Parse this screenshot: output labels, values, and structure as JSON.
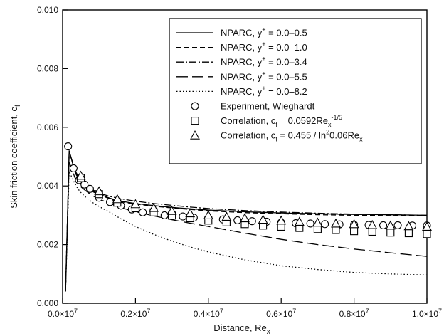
{
  "chart_data": {
    "type": "line",
    "xlabel": "Distance, Re",
    "xlabel_sub": "x",
    "ylabel": "Skin friction coefficient, c",
    "ylabel_sub": "f",
    "xlim": [
      0,
      10000000
    ],
    "ylim": [
      0,
      0.01
    ],
    "xticks": [
      {
        "value": 0,
        "label": "0.0×10",
        "exp": "7"
      },
      {
        "value": 2000000,
        "label": "0.2×10",
        "exp": "7"
      },
      {
        "value": 4000000,
        "label": "0.4×10",
        "exp": "7"
      },
      {
        "value": 6000000,
        "label": "0.6×10",
        "exp": "7"
      },
      {
        "value": 8000000,
        "label": "0.8×10",
        "exp": "7"
      },
      {
        "value": 10000000,
        "label": "1.0×10",
        "exp": "7"
      }
    ],
    "yticks": [
      {
        "value": 0,
        "label": "0.000"
      },
      {
        "value": 0.002,
        "label": "0.002"
      },
      {
        "value": 0.004,
        "label": "0.004"
      },
      {
        "value": 0.006,
        "label": "0.006"
      },
      {
        "value": 0.008,
        "label": "0.008"
      },
      {
        "value": 0.01,
        "label": "0.010"
      }
    ],
    "grid": false,
    "legend_position": "top-right",
    "series": [
      {
        "name": "NPARC, y+ = 0.0–0.5",
        "legend": {
          "pre": "NPARC, y",
          "sup": "+",
          "post": " = 0.0–0.5"
        },
        "style": "solid",
        "dash": "",
        "x": [
          80000,
          130000,
          180000,
          250000,
          330000,
          420000,
          520000,
          650000,
          800000,
          1000000,
          1300000,
          1600000,
          2000000,
          2500000,
          3000000,
          3500000,
          4000000,
          5000000,
          6000000,
          7000000,
          8000000,
          9000000,
          10000000
        ],
        "y": [
          0.0004,
          0.0028,
          0.0052,
          0.0049,
          0.0045,
          0.0043,
          0.0041,
          0.00398,
          0.00385,
          0.00372,
          0.00358,
          0.00348,
          0.0034,
          0.00333,
          0.00327,
          0.00322,
          0.00318,
          0.00312,
          0.00308,
          0.00305,
          0.00303,
          0.00302,
          0.003
        ]
      },
      {
        "name": "NPARC, y+ = 0.0–1.0",
        "legend": {
          "pre": "NPARC, y",
          "sup": "+",
          "post": " = 0.0–1.0"
        },
        "style": "dash",
        "dash": "7,4",
        "x": [
          80000,
          130000,
          180000,
          250000,
          330000,
          420000,
          520000,
          650000,
          800000,
          1000000,
          1300000,
          1600000,
          2000000,
          2500000,
          3000000,
          3500000,
          4000000,
          5000000,
          6000000,
          7000000,
          8000000,
          9000000,
          10000000
        ],
        "y": [
          0.0004,
          0.0028,
          0.0052,
          0.00488,
          0.00448,
          0.00428,
          0.00408,
          0.00395,
          0.00382,
          0.0037,
          0.00356,
          0.00346,
          0.00338,
          0.00331,
          0.00325,
          0.0032,
          0.00315,
          0.00309,
          0.00305,
          0.00302,
          0.003,
          0.00299,
          0.00298
        ]
      },
      {
        "name": "NPARC, y+ = 0.0–3.4",
        "legend": {
          "pre": "NPARC, y",
          "sup": "+",
          "post": " = 0.0–3.4"
        },
        "style": "dashdot",
        "dash": "10,3,2,3",
        "x": [
          80000,
          130000,
          180000,
          250000,
          330000,
          420000,
          520000,
          650000,
          800000,
          1000000,
          1300000,
          1600000,
          2000000,
          2500000,
          3000000,
          3500000,
          4000000,
          5000000,
          6000000,
          7000000,
          8000000,
          9000000,
          10000000
        ],
        "y": [
          0.0004,
          0.0028,
          0.0051,
          0.0049,
          0.00455,
          0.00435,
          0.00415,
          0.004,
          0.00388,
          0.00376,
          0.00364,
          0.00356,
          0.00348,
          0.0034,
          0.00334,
          0.00328,
          0.00323,
          0.00316,
          0.00311,
          0.00307,
          0.00304,
          0.00302,
          0.003
        ]
      },
      {
        "name": "NPARC, y+ = 0.0–5.5",
        "legend": {
          "pre": "NPARC, y",
          "sup": "+",
          "post": " = 0.0–5.5"
        },
        "style": "longdash",
        "dash": "16,6",
        "x": [
          80000,
          130000,
          180000,
          250000,
          330000,
          420000,
          520000,
          650000,
          800000,
          1000000,
          1300000,
          1600000,
          2000000,
          2500000,
          3000000,
          3500000,
          4000000,
          5000000,
          6000000,
          7000000,
          8000000,
          9000000,
          10000000
        ],
        "y": [
          0.0004,
          0.0026,
          0.0048,
          0.0046,
          0.0043,
          0.0041,
          0.00395,
          0.00382,
          0.00368,
          0.00355,
          0.0034,
          0.00326,
          0.00312,
          0.00298,
          0.00285,
          0.00273,
          0.00262,
          0.00239,
          0.00218,
          0.002,
          0.00185,
          0.00172,
          0.0016
        ]
      },
      {
        "name": "NPARC, y+ = 0.0–8.2",
        "legend": {
          "pre": "NPARC, y",
          "sup": "+",
          "post": " = 0.0–8.2"
        },
        "style": "dotted",
        "dash": "1.5,3",
        "x": [
          80000,
          130000,
          180000,
          250000,
          330000,
          420000,
          520000,
          650000,
          800000,
          1000000,
          1300000,
          1600000,
          2000000,
          2500000,
          3000000,
          3500000,
          4000000,
          5000000,
          6000000,
          7000000,
          8000000,
          9000000,
          10000000
        ],
        "y": [
          0.0004,
          0.0024,
          0.0045,
          0.0043,
          0.0041,
          0.0039,
          0.00375,
          0.0036,
          0.00345,
          0.0033,
          0.0031,
          0.00288,
          0.00262,
          0.00235,
          0.00212,
          0.00192,
          0.00175,
          0.00148,
          0.00128,
          0.00115,
          0.00105,
          0.001,
          0.00096
        ]
      }
    ],
    "markers": [
      {
        "name": "Experiment, Wieghardt",
        "legend": {
          "pre": "Experiment, Wieghardt"
        },
        "marker": "circle",
        "x": [
          150000,
          300000,
          450000,
          600000,
          750000,
          1000000,
          1300000,
          1600000,
          1900000,
          2200000,
          2500000,
          2800000,
          3000000,
          3300000,
          3600000,
          4000000,
          4400000,
          4800000,
          5200000,
          5600000,
          6000000,
          6400000,
          6800000,
          7200000,
          7600000,
          8000000,
          8400000,
          8800000,
          9200000,
          9600000,
          10000000
        ],
        "y": [
          0.00535,
          0.0046,
          0.0042,
          0.00405,
          0.0039,
          0.0036,
          0.00345,
          0.00333,
          0.0032,
          0.0031,
          0.0031,
          0.003,
          0.00298,
          0.00296,
          0.00292,
          0.0029,
          0.00286,
          0.00283,
          0.0028,
          0.00278,
          0.00275,
          0.00273,
          0.00272,
          0.0027,
          0.00269,
          0.00268,
          0.00267,
          0.00266,
          0.00266,
          0.00265,
          0.00265
        ]
      },
      {
        "name": "Correlation, cf = 0.0592Rex^-1/5",
        "legend": {
          "pre": "Correlation, c",
          "sub1": "f",
          "mid": " = 0.0592Re",
          "sub2": "x",
          "sup": "-1/5"
        },
        "marker": "square",
        "x": [
          500000,
          1000000,
          1500000,
          2000000,
          2500000,
          3000000,
          3500000,
          4000000,
          4500000,
          5000000,
          5500000,
          6000000,
          6500000,
          7000000,
          7500000,
          8000000,
          8500000,
          9000000,
          9500000,
          10000000
        ],
        "y": [
          0.00427,
          0.00372,
          0.00343,
          0.00324,
          0.0031,
          0.00299,
          0.0029,
          0.00282,
          0.00276,
          0.0027,
          0.00265,
          0.00261,
          0.00257,
          0.00253,
          0.0025,
          0.00246,
          0.00244,
          0.00241,
          0.00239,
          0.00236
        ]
      },
      {
        "name": "Correlation, cf = 0.455 / ln²0.06Rex",
        "legend": {
          "pre": "Correlation, c",
          "sub1": "f",
          "mid": " = 0.455 / ln",
          "sup": "2",
          "post": "0.06Re",
          "sub2": "x"
        },
        "marker": "triangle",
        "x": [
          500000,
          1000000,
          1500000,
          2000000,
          2500000,
          3000000,
          3500000,
          4000000,
          4500000,
          5000000,
          5500000,
          6000000,
          6500000,
          7000000,
          7500000,
          8000000,
          8500000,
          9000000,
          9500000,
          10000000
        ],
        "y": [
          0.00435,
          0.00382,
          0.00355,
          0.00338,
          0.00325,
          0.00315,
          0.00307,
          0.003,
          0.00295,
          0.0029,
          0.00285,
          0.00282,
          0.00278,
          0.00275,
          0.00272,
          0.0027,
          0.00267,
          0.00265,
          0.00263,
          0.00261
        ]
      }
    ]
  }
}
